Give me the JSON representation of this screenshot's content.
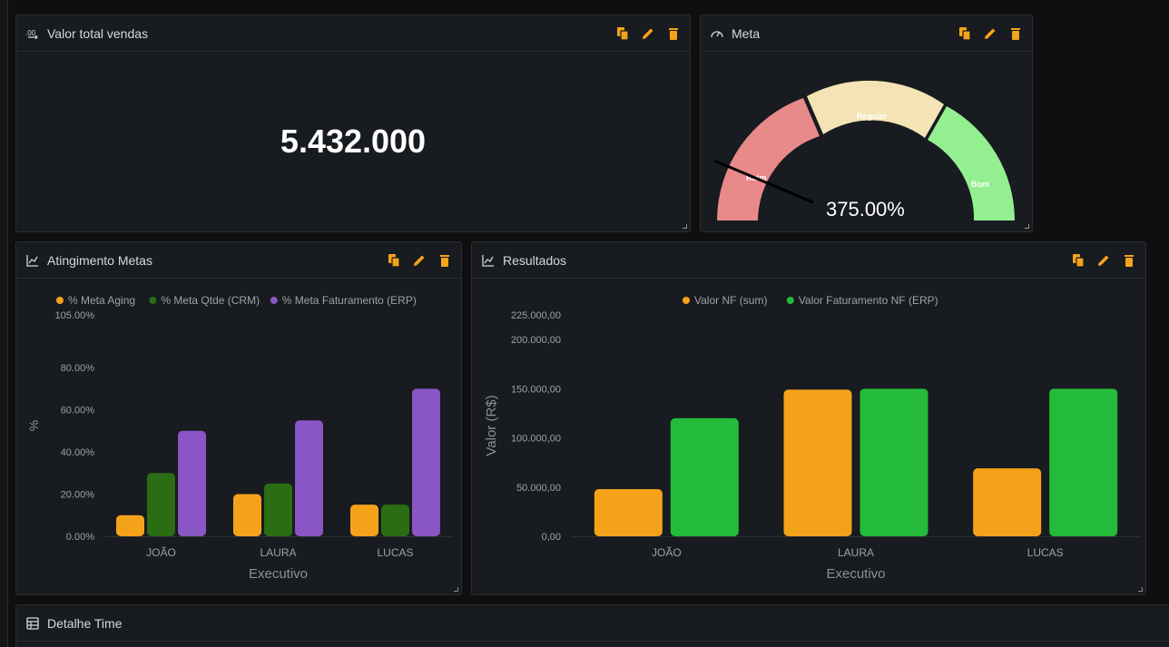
{
  "colors": {
    "accent": "#f5a21b",
    "panel_bg": "#181b1f",
    "green_dark": "#2a6d12",
    "purple": "#8a55c4",
    "green_bright": "#25bb3a",
    "gauge_bad": "#e88a8a",
    "gauge_regular": "#f4e3b4",
    "gauge_good": "#93ef8f"
  },
  "panels": {
    "valor_total": {
      "title": "Valor total vendas",
      "value": "5.432.000"
    },
    "meta": {
      "title": "Meta",
      "readout": "375.00%",
      "bands": [
        {
          "label": "Ruim",
          "color": "#e88a8a"
        },
        {
          "label": "Regular",
          "color": "#f4e3b4"
        },
        {
          "label": "Bom",
          "color": "#93ef8f"
        }
      ]
    },
    "atingimento": {
      "title": "Atingimento Metas"
    },
    "resultados": {
      "title": "Resultados"
    },
    "detalhe": {
      "title": "Detalhe Time"
    }
  },
  "chart_data": [
    {
      "type": "bar",
      "title": "Atingimento Metas",
      "categories": [
        "JOÃO",
        "LAURA",
        "LUCAS"
      ],
      "series": [
        {
          "name": "% Meta Aging",
          "color": "#f5a21b",
          "values": [
            10,
            20,
            15
          ]
        },
        {
          "name": "% Meta Qtde (CRM)",
          "color": "#2a6d12",
          "values": [
            30,
            25,
            15
          ]
        },
        {
          "name": "% Meta Faturamento (ERP)",
          "color": "#8a55c4",
          "values": [
            50,
            55,
            70
          ]
        }
      ],
      "yticks": [
        "0.00%",
        "20.00%",
        "40.00%",
        "60.00%",
        "80.00%",
        "105.00%"
      ],
      "ytick_values": [
        0,
        20,
        40,
        60,
        80,
        105
      ],
      "ylim": [
        0,
        105
      ],
      "xlabel": "Executivo",
      "ylabel": "%",
      "legend_position": "top"
    },
    {
      "type": "bar",
      "title": "Resultados",
      "categories": [
        "JOÃO",
        "LAURA",
        "LUCAS"
      ],
      "series": [
        {
          "name": "Valor NF (sum)",
          "color": "#f5a21b",
          "values": [
            48000,
            149000,
            69000
          ]
        },
        {
          "name": "Valor Faturamento NF (ERP)",
          "color": "#25bb3a",
          "values": [
            120000,
            150000,
            150000
          ]
        }
      ],
      "yticks": [
        "0,00",
        "50.000,00",
        "100.000,00",
        "150.000,00",
        "200.000,00",
        "225.000,00"
      ],
      "ytick_values": [
        0,
        50000,
        100000,
        150000,
        200000,
        225000
      ],
      "ylim": [
        0,
        225000
      ],
      "xlabel": "Executivo",
      "ylabel": "Valor (R$)",
      "legend_position": "top"
    }
  ]
}
